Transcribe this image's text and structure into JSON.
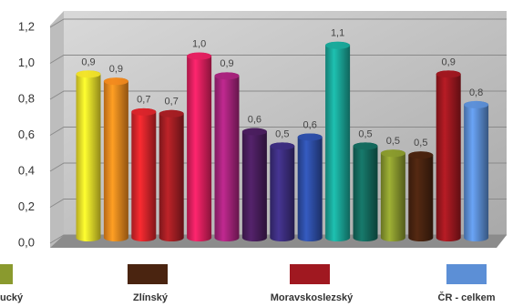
{
  "chart_data": {
    "type": "bar",
    "categories": [
      null,
      null,
      null,
      null,
      null,
      null,
      null,
      null,
      null,
      null,
      null,
      "ucký",
      "Zlínský",
      "Moravskoslezský",
      "ČR - celkem"
    ],
    "values": [
      0.94,
      0.9,
      0.73,
      0.72,
      1.04,
      0.93,
      0.62,
      0.54,
      0.59,
      1.1,
      0.54,
      0.5,
      0.49,
      0.94,
      0.77
    ],
    "value_labels": [
      "0,9",
      "0,9",
      "0,7",
      "0,7",
      "1,0",
      "0,9",
      "0,6",
      "0,5",
      "0,6",
      "1,1",
      "0,5",
      "0,5",
      "0,5",
      "0,9",
      "0,8"
    ],
    "colors": [
      "#f2e22a",
      "#f28a1e",
      "#d9252b",
      "#a51e24",
      "#e42060",
      "#a8247d",
      "#4a1e5e",
      "#3d2e80",
      "#2e4fa8",
      "#1aa89a",
      "#146a5e",
      "#8a9a2e",
      "#4a2410",
      "#a01820",
      "#5c8fd6"
    ],
    "ylim": [
      0,
      1.2
    ],
    "yticks": [
      {
        "value": 0,
        "label": "0,0"
      },
      {
        "value": 0.2,
        "label": "0,2"
      },
      {
        "value": 0.4,
        "label": "0,4"
      },
      {
        "value": 0.6,
        "label": "0,6"
      },
      {
        "value": 0.8,
        "label": "0,8"
      },
      {
        "value": 1,
        "label": "1,0"
      },
      {
        "value": 1.2,
        "label": "1,2"
      }
    ],
    "grid": true
  }
}
